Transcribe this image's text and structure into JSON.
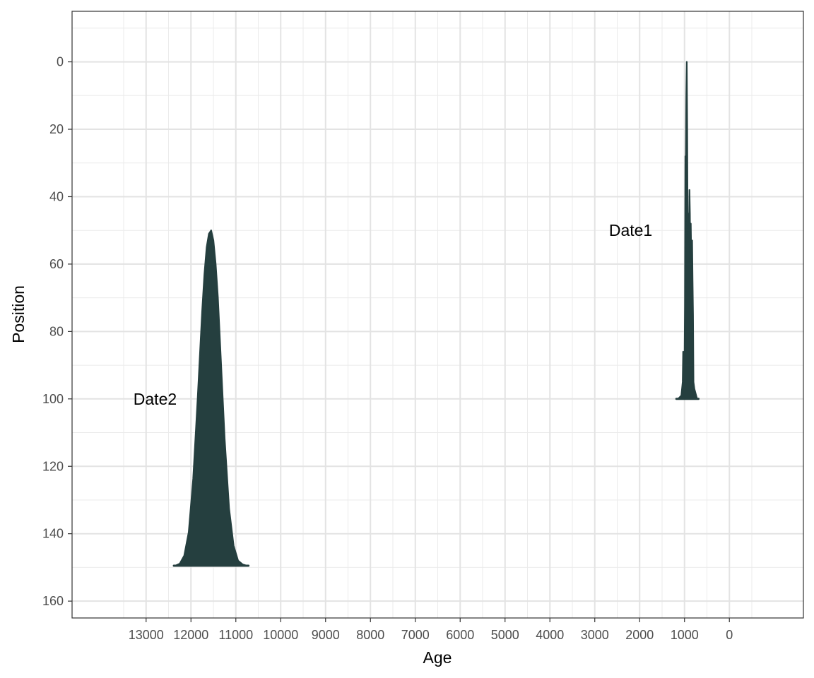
{
  "chart_data": {
    "type": "area",
    "xlabel": "Age",
    "ylabel": "Position",
    "x_reversed": true,
    "y_reversed": true,
    "xlim": [
      14650,
      -1650
    ],
    "ylim": [
      -15,
      165
    ],
    "x_ticks": [
      13000,
      12000,
      11000,
      10000,
      9000,
      8000,
      7000,
      6000,
      5000,
      4000,
      3000,
      2000,
      1000,
      0
    ],
    "x_tick_labels": [
      "13000",
      "12000",
      "11000",
      "10000",
      "9000",
      "8000",
      "7000",
      "6000",
      "5000",
      "4000",
      "3000",
      "2000",
      "1000",
      "0"
    ],
    "y_ticks": [
      0,
      20,
      40,
      60,
      80,
      100,
      120,
      140,
      160
    ],
    "y_tick_labels": [
      "0",
      "20",
      "40",
      "60",
      "80",
      "100",
      "120",
      "140",
      "160"
    ],
    "grid": true,
    "fill_color": "#253f3f",
    "annotations": [
      {
        "text": "Date1",
        "x": 2200,
        "y": 50
      },
      {
        "text": "Date2",
        "x": 12800,
        "y": 100
      }
    ],
    "distributions": [
      {
        "base_position": 100,
        "peak_position": 0,
        "x": [
          1150,
          1120,
          1070,
          1040,
          1030,
          1020,
          1010,
          1000,
          990,
          980,
          970,
          960,
          950,
          940,
          930,
          920,
          910,
          900,
          890,
          880,
          870,
          860,
          850,
          840,
          830,
          820,
          810,
          800,
          790,
          780,
          760,
          740,
          720
        ],
        "density": [
          0.0,
          0.003,
          0.01,
          0.05,
          0.14,
          0.08,
          0.05,
          0.1,
          0.28,
          0.72,
          0.7,
          0.9,
          1.0,
          0.8,
          0.48,
          0.55,
          0.5,
          0.46,
          0.62,
          0.55,
          0.4,
          0.52,
          0.42,
          0.45,
          0.47,
          0.35,
          0.25,
          0.05,
          0.04,
          0.03,
          0.02,
          0.01,
          0.0
        ]
      },
      {
        "base_position": 149.5,
        "peak_position": 50,
        "x": [
          12350,
          12250,
          12150,
          12050,
          11950,
          11850,
          11750,
          11700,
          11650,
          11600,
          11550,
          11500,
          11450,
          11400,
          11350,
          11300,
          11250,
          11150,
          11050,
          10950,
          10850,
          10750
        ],
        "density": [
          0.0,
          0.006,
          0.03,
          0.1,
          0.26,
          0.5,
          0.76,
          0.87,
          0.95,
          0.99,
          1.0,
          0.97,
          0.9,
          0.8,
          0.66,
          0.52,
          0.38,
          0.17,
          0.06,
          0.015,
          0.004,
          0.0
        ]
      }
    ]
  }
}
